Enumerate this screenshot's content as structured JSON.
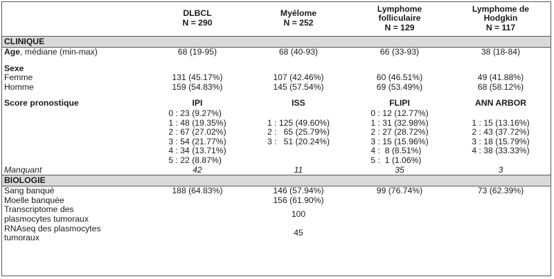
{
  "columns": [
    {
      "name": "DLBCL",
      "n": "N = 290"
    },
    {
      "name": "Myélome",
      "n": "N = 252"
    },
    {
      "name": "Lymphome folliculaire",
      "n": "N = 129"
    },
    {
      "name": "Lymphome de Hodgkin",
      "n": "N = 117"
    }
  ],
  "clinique": {
    "section_label": "CLINIQUE",
    "age": {
      "label_bold": "Age",
      "label_rest": ", médiane (min-max)",
      "values": [
        "68 (19-95)",
        "68 (40-93)",
        "66 (33-93)",
        "38 (18-84)"
      ]
    },
    "sexe": {
      "label": "Sexe",
      "rows": [
        {
          "label": "Femme",
          "values": [
            "131 (45.17%)",
            "107 (42.46%)",
            "60 (46.51%)",
            "49 (41.88%)"
          ]
        },
        {
          "label": "Homme",
          "values": [
            "159 (54.83%)",
            "145 (57.54%)",
            "69 (53.49%)",
            "68 (58.12%)"
          ]
        }
      ]
    },
    "score": {
      "label": "Score pronostique",
      "systems": [
        "IPI",
        "ISS",
        "FLIPI",
        "ANN ARBOR"
      ],
      "values": [
        "0 : 23 (9.27%)\n1 : 48 (19.35%)\n2 : 67 (27.02%)\n3 : 54 (21.77%)\n4 : 34 (13.71%)\n5 : 22 (8.87%)",
        "\n1 : 125 (49.60%)\n2 :   65 (25.79%)\n3 :   51 (20.24%)",
        "0 : 12 (12.77%)\n1 : 31 (32.98%)\n2 : 27 (28.72%)\n3 : 15 (15.96%)\n4 :  8 (8.51%)\n5 :  1 (1.06%)",
        "\n1 : 15 (13.16%)\n2 : 43 (37.72%)\n3 : 18 (15.79%)\n4 : 38 (33.33%)"
      ]
    },
    "manquant": {
      "label": "Manquant",
      "values": [
        "42",
        "11",
        "35",
        "3"
      ]
    }
  },
  "biologie": {
    "section_label": "BIOLOGIE",
    "rows": [
      {
        "label": "Sang banqué",
        "values": [
          "188 (64.83%)",
          "146 (57.94%)",
          "99 (76.74%)",
          "73 (62.39%)"
        ]
      },
      {
        "label": "Moelle banquée",
        "values": [
          "",
          "156 (61.90%)",
          "",
          ""
        ]
      },
      {
        "label": "Transcriptome des\nplasmocytes tumoraux",
        "values": [
          "",
          "100",
          "",
          ""
        ]
      },
      {
        "label": "RNAseq des plasmocytes\ntumoraux",
        "values": [
          "",
          "45",
          "",
          ""
        ]
      }
    ]
  }
}
